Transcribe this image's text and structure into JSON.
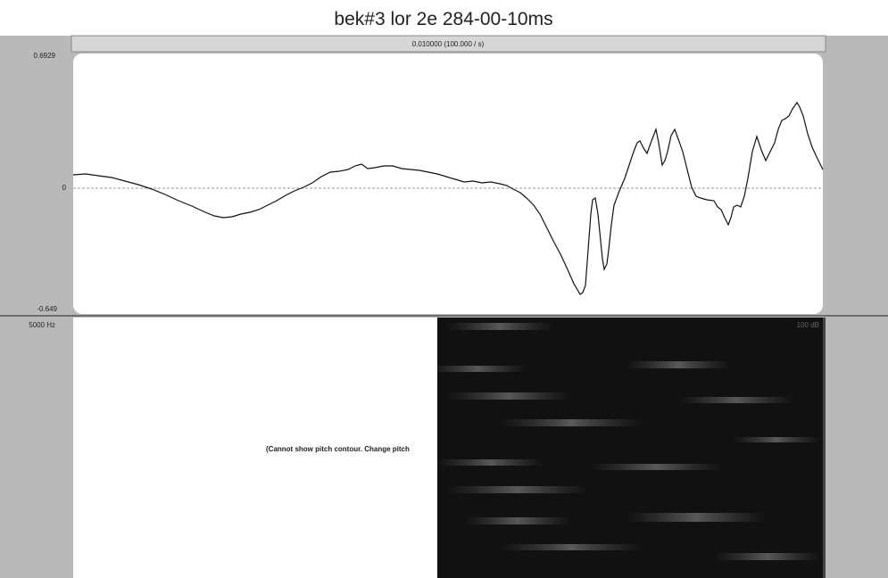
{
  "window": {
    "title": "bek#3 lor 2e 284-00-10ms"
  },
  "time_bar": {
    "label": "0.010000 (100.000 / s)"
  },
  "waveform": {
    "y_max_label": "0.6929",
    "zero_label": "0",
    "y_min_label": "-0.649"
  },
  "spectrogram": {
    "freq_label": "5000 Hz",
    "db_label": "100 dB"
  },
  "pitch": {
    "message": "(Cannot show pitch contour. Change pitch"
  }
}
